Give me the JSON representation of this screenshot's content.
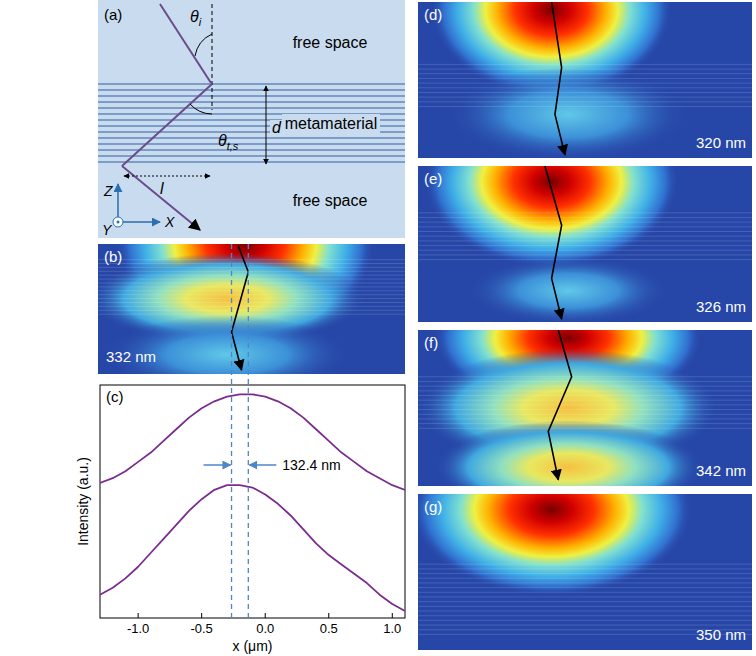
{
  "panels": {
    "a": {
      "letter": "(a)",
      "top": "free space",
      "middle": "metamaterial",
      "bottom": "free space",
      "d": "d",
      "l": "l",
      "theta_i": [
        "θ",
        "i"
      ],
      "theta_t": [
        "θ",
        "t,s"
      ],
      "z": "Z",
      "x": "X",
      "y": "Y"
    },
    "maps": [
      {
        "letter": "(b)",
        "wavelength": "332 nm"
      },
      {
        "letter": "(d)",
        "wavelength": "320 nm"
      },
      {
        "letter": "(e)",
        "wavelength": "326 nm"
      },
      {
        "letter": "(f)",
        "wavelength": "342 nm"
      },
      {
        "letter": "(g)",
        "wavelength": "350 nm"
      }
    ]
  },
  "chart_data": {
    "type": "line",
    "letter": "(c)",
    "x_label": "x (μm)",
    "y_label": "Intensity (a.u.)",
    "xlim": [
      -1.3,
      1.1
    ],
    "ylim": [
      0,
      1
    ],
    "tick_labels": "x",
    "xticks": [
      {
        "value": -1,
        "label": "-1.0"
      },
      {
        "value": -0.5,
        "label": "-0.5"
      },
      {
        "value": 0,
        "label": "0.0"
      },
      {
        "value": 0.5,
        "label": "0.5"
      },
      {
        "value": 1,
        "label": "1.0"
      }
    ],
    "x": [
      -1.3,
      -1.2,
      -1.1,
      -1.0,
      -0.9,
      -0.8,
      -0.7,
      -0.6,
      -0.5,
      -0.4,
      -0.3,
      -0.2,
      -0.1,
      0.0,
      0.1,
      0.2,
      0.3,
      0.4,
      0.5,
      0.6,
      0.7,
      0.8,
      0.9,
      1.0,
      1.1
    ],
    "series": [
      {
        "color": "#7b2d8e",
        "values": [
          0.58,
          0.6,
          0.63,
          0.67,
          0.71,
          0.76,
          0.81,
          0.86,
          0.9,
          0.93,
          0.95,
          0.96,
          0.96,
          0.95,
          0.93,
          0.9,
          0.86,
          0.81,
          0.76,
          0.71,
          0.67,
          0.63,
          0.6,
          0.57,
          0.55
        ]
      },
      {
        "color": "#7b2d8e",
        "values": [
          0.1,
          0.13,
          0.17,
          0.22,
          0.28,
          0.34,
          0.4,
          0.46,
          0.51,
          0.55,
          0.57,
          0.57,
          0.56,
          0.53,
          0.49,
          0.44,
          0.38,
          0.32,
          0.27,
          0.23,
          0.19,
          0.15,
          0.1,
          0.06,
          0.03
        ]
      }
    ],
    "annotations": [
      {
        "text": "132.4 nm",
        "x_start": -0.265,
        "x_end": -0.133
      }
    ]
  }
}
